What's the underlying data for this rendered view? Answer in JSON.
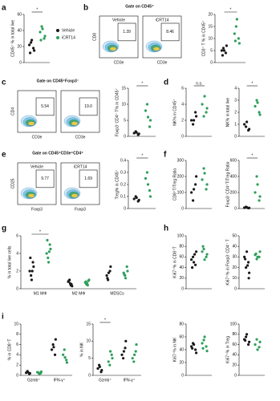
{
  "letters": [
    "a",
    "b",
    "c",
    "d",
    "e",
    "f",
    "g",
    "h",
    "i"
  ],
  "flow": [
    {
      "gate": "Gate on CD45⁺",
      "ylabel": "CD8",
      "xlabel": "CD3e",
      "plots": [
        {
          "label": "Vehicle",
          "value": "1.39"
        },
        {
          "label": "iCRT14",
          "value": "8.46"
        }
      ]
    },
    {
      "gate": "Gate on CD45⁺Foxp3⁻",
      "ylabel": "CD4",
      "xlabel": "CD3e",
      "plots": [
        {
          "value": "5.54"
        },
        {
          "value": "19.0"
        }
      ]
    },
    {
      "gate": "Gate on CD45⁺CD3e⁺CD4⁺",
      "ylabel": "CD25",
      "xlabel": "Foxp3",
      "plots": [
        {
          "label": "Vehicle",
          "value": "9.77"
        },
        {
          "label": "iCRT14",
          "value": "1.69"
        }
      ]
    }
  ],
  "chart_data": [
    {
      "type": "dot",
      "ylabel": "CD45⁺ % in total live",
      "ylim": [
        0,
        60
      ],
      "yticks": [
        0,
        20,
        40,
        60
      ],
      "significance": "*",
      "series": [
        {
          "name": "Vehicle",
          "color": "#1a1a1a",
          "values": [
            22,
            18,
            25,
            15,
            28,
            12
          ]
        },
        {
          "name": "iCRT14",
          "color": "#2e9e5b",
          "values": [
            38,
            30,
            45,
            33,
            42,
            28
          ]
        }
      ]
    },
    {
      "type": "dot",
      "ylabel": "CD3⁺ T % in CD45⁺",
      "ylim": [
        0,
        20
      ],
      "yticks": [
        0,
        5,
        10,
        15,
        20
      ],
      "significance": "*",
      "series": [
        {
          "color": "#1a1a1a",
          "values": [
            5,
            4,
            6,
            7,
            5,
            3
          ]
        },
        {
          "color": "#2e9e5b",
          "values": [
            12,
            10,
            15,
            8,
            18,
            9
          ]
        }
      ]
    },
    {
      "type": "dot",
      "ylabel": "Foxp3⁻CD4⁺ T% in CD45⁺",
      "ylim": [
        0,
        15
      ],
      "yticks": [
        0,
        5,
        10,
        15
      ],
      "significance": "*",
      "series": [
        {
          "color": "#1a1a1a",
          "values": [
            1,
            0.5,
            1.5,
            0.8,
            1.2
          ]
        },
        {
          "color": "#2e9e5b",
          "values": [
            8,
            3,
            10,
            5,
            6
          ]
        }
      ]
    },
    {
      "type": "dot",
      "ylabel": "NK% in CD45⁺",
      "ylim": [
        0,
        6
      ],
      "yticks": [
        0,
        2,
        4,
        6
      ],
      "significance": "n.s.",
      "series": [
        {
          "color": "#1a1a1a",
          "values": [
            2,
            3,
            1.5,
            2.5,
            2
          ]
        },
        {
          "color": "#2e9e5b",
          "values": [
            4,
            3,
            2.5,
            3.5,
            5
          ]
        }
      ]
    },
    {
      "type": "dot",
      "ylabel": "NK% in total live",
      "ylim": [
        0,
        4
      ],
      "yticks": [
        0,
        1,
        2,
        3,
        4
      ],
      "significance": "*",
      "series": [
        {
          "color": "#1a1a1a",
          "values": [
            1,
            0.5,
            0.8,
            0.6,
            1.2
          ]
        },
        {
          "color": "#2e9e5b",
          "values": [
            2.5,
            2,
            3,
            1.8,
            2.8
          ]
        }
      ]
    },
    {
      "type": "dot",
      "ylabel": "Treg% in CD45⁺",
      "ylim": [
        0,
        0.4
      ],
      "yticks": [
        0,
        0.1,
        0.2,
        0.3,
        0.4
      ],
      "significance": "*",
      "series": [
        {
          "color": "#1a1a1a",
          "values": [
            0.08,
            0.06,
            0.1,
            0.07,
            0.09
          ]
        },
        {
          "color": "#2e9e5b",
          "values": [
            0.25,
            0.15,
            0.3,
            0.1,
            0.2
          ]
        }
      ]
    },
    {
      "type": "dot",
      "ylabel": "CD8⁺T/Treg Ratio",
      "ylim": [
        0,
        300
      ],
      "yticks": [
        0,
        100,
        200,
        300
      ],
      "series": [
        {
          "color": "#1a1a1a",
          "values": [
            100,
            150,
            50,
            200,
            120
          ]
        },
        {
          "color": "#2e9e5b",
          "values": [
            180,
            120,
            250,
            150,
            220
          ]
        }
      ]
    },
    {
      "type": "dot",
      "ylabel": "Foxp3⁻CD4⁺T/Treg Ratio",
      "ylim": [
        0,
        600
      ],
      "yticks": [
        0,
        200,
        400,
        600
      ],
      "significance": "*",
      "series": [
        {
          "color": "#1a1a1a",
          "values": [
            10,
            5,
            20,
            8,
            15
          ]
        },
        {
          "color": "#2e9e5b",
          "values": [
            200,
            100,
            400,
            150,
            300
          ]
        }
      ]
    },
    {
      "type": "grouped_dot",
      "ylabel": "% in total live cells",
      "ylim": [
        0,
        6
      ],
      "yticks": [
        0,
        2,
        4,
        6
      ],
      "categories": [
        "M1 MΦ",
        "M2 MΦ",
        "MDSCs"
      ],
      "annotations": [
        {
          "label": "*",
          "category": "M1 MΦ"
        }
      ],
      "series": [
        {
          "color": "#1a1a1a",
          "values": [
            [
              2,
              3,
              1.5,
              2.5,
              1,
              3.5,
              2
            ],
            [
              0.8,
              0.5,
              1,
              0.3,
              0.6,
              0.9,
              0.4
            ],
            [
              1.5,
              2,
              1,
              2.5,
              1.8,
              1.2
            ]
          ]
        },
        {
          "color": "#2e9e5b",
          "values": [
            [
              4,
              5,
              3.5,
              4.5,
              3,
              5.5,
              4.2
            ],
            [
              0.7,
              0.9,
              0.5,
              1,
              0.6,
              0.8,
              0.4
            ],
            [
              1.8,
              2.5,
              1.5,
              2,
              1.2,
              1.6
            ]
          ]
        }
      ]
    },
    {
      "type": "dot",
      "ylabel": "Ki67⁺% in CD8⁺T",
      "ylim": [
        0,
        100
      ],
      "yticks": [
        0,
        20,
        40,
        60,
        80,
        100
      ],
      "series": [
        {
          "color": "#1a1a1a",
          "values": [
            55,
            45,
            60,
            70,
            50,
            40,
            65
          ]
        },
        {
          "color": "#2e9e5b",
          "values": [
            70,
            60,
            75,
            65,
            55,
            80
          ]
        }
      ]
    },
    {
      "type": "dot",
      "ylabel": "Ki67⁺% in Foxp3⁻CD4⁺ T",
      "ylim": [
        0,
        50
      ],
      "yticks": [
        0,
        10,
        20,
        30,
        40,
        50
      ],
      "series": [
        {
          "color": "#1a1a1a",
          "values": [
            30,
            25,
            20,
            15,
            35,
            28,
            22,
            10
          ]
        },
        {
          "color": "#2e9e5b",
          "values": [
            32,
            30,
            28,
            35,
            30,
            33
          ]
        }
      ]
    },
    {
      "type": "grouped_dot",
      "ylabel": "% in CD8⁺T",
      "ylim": [
        0,
        10
      ],
      "yticks": [
        0,
        2,
        4,
        6,
        8,
        10
      ],
      "categories": [
        "Gzmb⁺",
        "IFN-γ⁺"
      ],
      "series": [
        {
          "color": "#1a1a1a",
          "values": [
            [
              0.5,
              0.3,
              0.8,
              0.4,
              0.6
            ],
            [
              5,
              4,
              6,
              7,
              5.5
            ]
          ]
        },
        {
          "color": "#2e9e5b",
          "values": [
            [
              0.6,
              0.4,
              0.5,
              0.7,
              0.3
            ],
            [
              4,
              3,
              5,
              2.5,
              3.5
            ]
          ]
        }
      ]
    },
    {
      "type": "grouped_dot",
      "ylabel": "% in NK",
      "ylim": [
        0,
        15
      ],
      "yticks": [
        0,
        5,
        10,
        15
      ],
      "categories": [
        "Gzmb⁺",
        "IFN-γ⁺"
      ],
      "annotations": [
        {
          "label": "*",
          "category": "Gzmb⁺"
        }
      ],
      "series": [
        {
          "color": "#1a1a1a",
          "values": [
            [
              2,
              1,
              3,
              1.5,
              2.5
            ],
            [
              6,
              8,
              5,
              10,
              7
            ]
          ]
        },
        {
          "color": "#2e9e5b",
          "values": [
            [
              4,
              6,
              3,
              5,
              7
            ],
            [
              5,
              7,
              4,
              9,
              6
            ]
          ]
        }
      ]
    },
    {
      "type": "dot",
      "ylabel": "Ki67⁺% in NK",
      "ylim": [
        0,
        80
      ],
      "yticks": [
        0,
        20,
        40,
        60,
        80
      ],
      "series": [
        {
          "color": "#1a1a1a",
          "values": [
            45,
            40,
            50,
            35,
            48,
            42
          ]
        },
        {
          "color": "#2e9e5b",
          "values": [
            50,
            45,
            55,
            38,
            60,
            42
          ]
        }
      ]
    },
    {
      "type": "dot",
      "ylabel": "Ki67⁺% in Treg",
      "ylim": [
        0,
        100
      ],
      "yticks": [
        0,
        20,
        40,
        60,
        80,
        100
      ],
      "series": [
        {
          "color": "#1a1a1a",
          "values": [
            70,
            60,
            75,
            65,
            80,
            68
          ]
        },
        {
          "color": "#2e9e5b",
          "values": [
            60,
            55,
            70,
            65,
            50
          ]
        }
      ]
    }
  ]
}
